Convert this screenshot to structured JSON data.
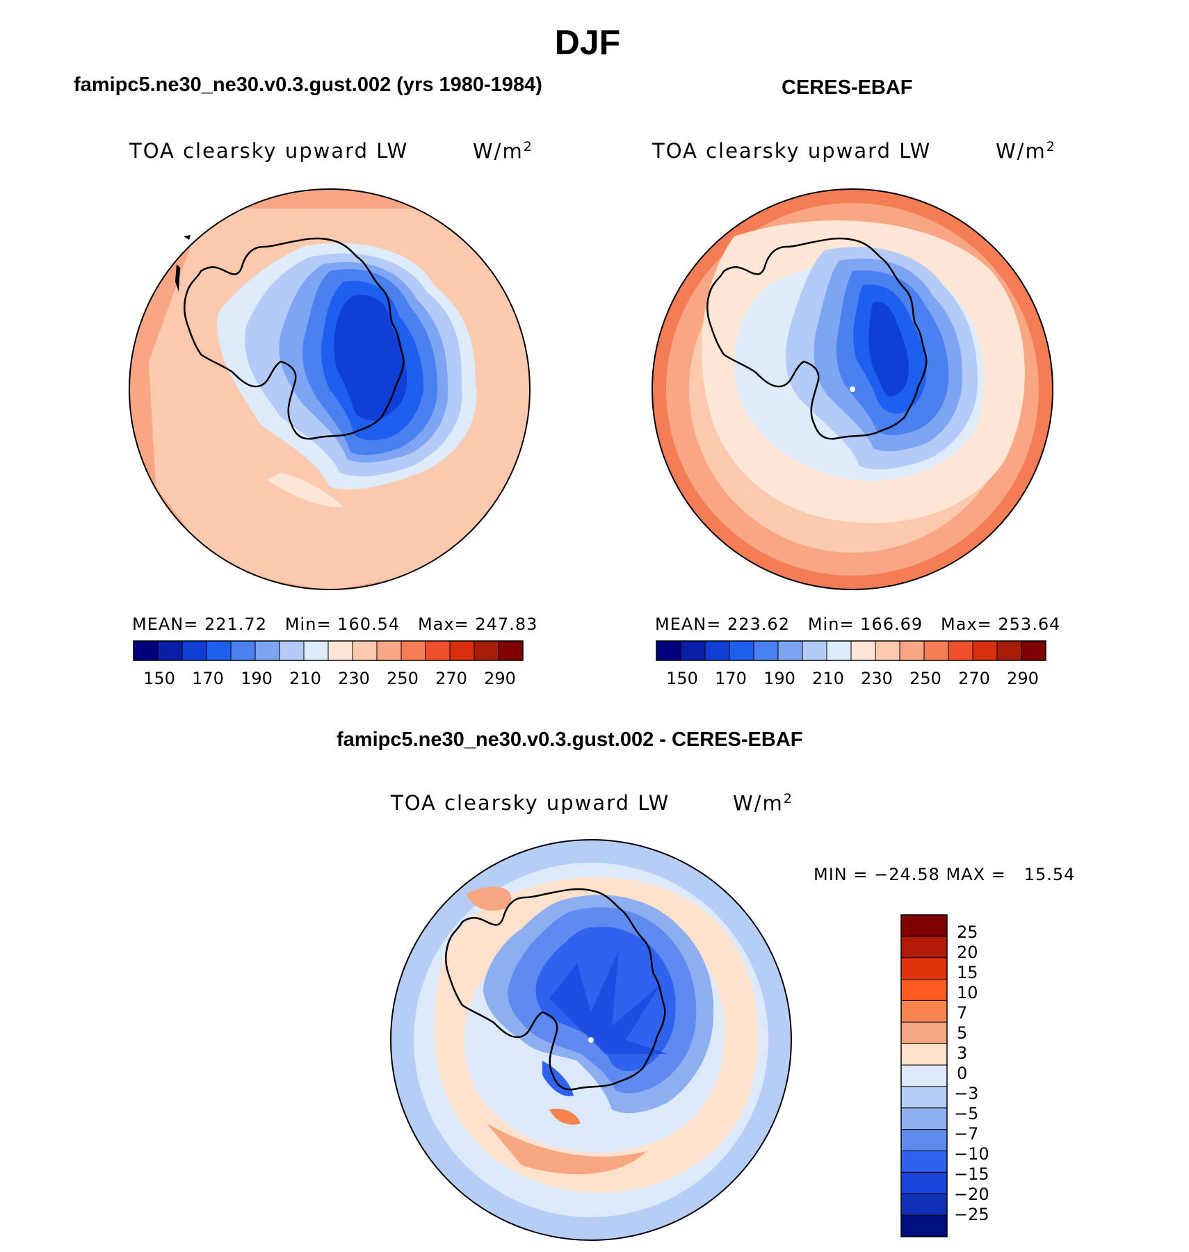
{
  "title": "DJF",
  "panels": [
    {
      "id": "model",
      "case_title": "famipc5.ne30_ne30.v0.3.gust.002 (yrs 1980-1984)",
      "field": "TOA clearsky upward LW",
      "units_base": "W/m",
      "units_exp": "2",
      "stats": "MEAN= 221.72   Min= 160.54   Max= 247.83",
      "colorbar_ticks": [
        "150",
        "170",
        "190",
        "210",
        "230",
        "250",
        "270",
        "290"
      ]
    },
    {
      "id": "obs",
      "case_title": "CERES-EBAF",
      "field": "TOA clearsky upward LW",
      "units_base": "W/m",
      "units_exp": "2",
      "stats": "MEAN= 223.62   Min= 166.69   Max= 253.64",
      "colorbar_ticks": [
        "150",
        "170",
        "190",
        "210",
        "230",
        "250",
        "270",
        "290"
      ]
    }
  ],
  "diff": {
    "case_title": "famipc5.ne30_ne30.v0.3.gust.002 - CERES-EBAF",
    "field": "TOA clearsky upward LW",
    "units_base": "W/m",
    "units_exp": "2",
    "stats": "MIN = −24.58 MAX =   15.54",
    "colorbar_labels": [
      "25",
      "20",
      "15",
      "10",
      "7",
      "5",
      "3",
      "0",
      "−3",
      "−5",
      "−7",
      "−10",
      "−15",
      "−20",
      "−25"
    ]
  },
  "colors": {
    "abs_scale": [
      "#00007f",
      "#0a1fa8",
      "#0f3fd6",
      "#1f5ff0",
      "#4a80f0",
      "#7ea5f3",
      "#b3cbf6",
      "#ddebfb",
      "#fde6d6",
      "#fbc9ae",
      "#f8a683",
      "#f57d55",
      "#f0512a",
      "#d92f0e",
      "#a81d08",
      "#7f0000"
    ],
    "diff_scale": [
      "#7f0000",
      "#b31905",
      "#e0330a",
      "#fc5a20",
      "#f9834f",
      "#f7a780",
      "#fde1cc",
      "#dbe9fa",
      "#b6cdf6",
      "#8daef1",
      "#5f8af0",
      "#2f62ef",
      "#1a45dc",
      "#1030b8",
      "#000f7f"
    ]
  }
}
